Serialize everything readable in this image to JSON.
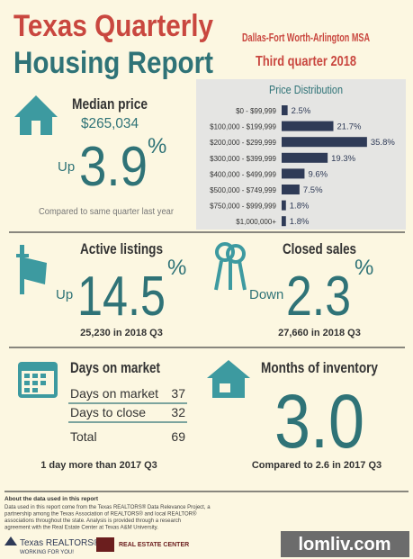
{
  "header": {
    "title_line1": "Texas Quarterly",
    "title_line2": "Housing Report",
    "region": "Dallas-Fort Worth-Arlington MSA",
    "period": "Third quarter 2018"
  },
  "median_price": {
    "label": "Median price",
    "value": "$265,034",
    "direction": "Up",
    "change": "3.9",
    "unit": "%",
    "note": "Compared to same quarter last year"
  },
  "price_distribution": {
    "type": "bar",
    "title": "Price Distribution",
    "color": "#2f3b57",
    "categories": [
      "$0 - $99,999",
      "$100,000 - $199,999",
      "$200,000 - $299,999",
      "$300,000 - $399,999",
      "$400,000 - $499,999",
      "$500,000 - $749,999",
      "$750,000 - $999,999",
      "$1,000,000+"
    ],
    "values": [
      2.5,
      21.7,
      35.8,
      19.3,
      9.6,
      7.5,
      1.8,
      1.8
    ],
    "value_labels": [
      "2.5%",
      "21.7%",
      "35.8%",
      "19.3%",
      "9.6%",
      "7.5%",
      "1.8%",
      "1.8%"
    ]
  },
  "active_listings": {
    "label": "Active listings",
    "direction": "Up",
    "change": "14.5",
    "unit": "%",
    "note": "25,230 in 2018 Q3"
  },
  "closed_sales": {
    "label": "Closed sales",
    "direction": "Down",
    "change": "2.3",
    "unit": "%",
    "note": "27,660 in 2018 Q3"
  },
  "days_on_market": {
    "label": "Days on market",
    "rows": [
      [
        "Days on market",
        "37"
      ],
      [
        "Days to close",
        "32"
      ],
      [
        "Total",
        "69"
      ]
    ],
    "note": "1 day more than 2017 Q3"
  },
  "months_of_inventory": {
    "label": "Months of inventory",
    "value": "3.0",
    "note": "Compared to 2.6 in 2017 Q3"
  },
  "footer": {
    "about_title": "About the data used in this report",
    "about_lines": [
      "Data used in this report come from the Texas REALTORS® Data Relevance Project, a",
      "partnership among the Texas Association of REALTORS® and local REALTOR®",
      "associations throughout the state. Analysis is provided through a research",
      "agreement with the Real Estate Center at Texas A&M University."
    ],
    "logo1": "Texas REALTORS®",
    "logo1_tag": "WORKING FOR YOU!",
    "logo2": "REAL ESTATE CENTER",
    "watermark": "lomliv.com"
  }
}
